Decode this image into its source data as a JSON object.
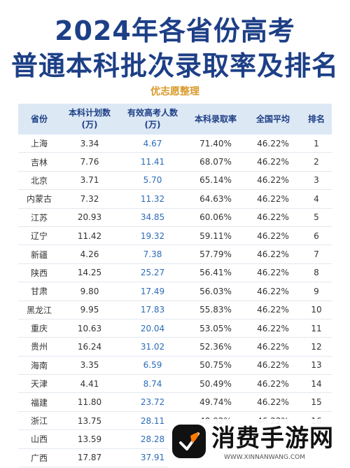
{
  "title_line1": "2024年各省份高考",
  "title_line2": "普通本科批次录取率及排名",
  "subtitle": "优志愿整理",
  "table": {
    "headers": {
      "province": "省份",
      "plan": [
        "本科计划数",
        "(万)"
      ],
      "exam": [
        "有效高考人数",
        "(万)"
      ],
      "rate": "本科录取率",
      "avg": "全国平均",
      "rank": "排名"
    },
    "rows": [
      [
        "上海",
        "3.34",
        "4.67",
        "71.40%",
        "46.22%",
        "1"
      ],
      [
        "吉林",
        "7.76",
        "11.41",
        "68.07%",
        "46.22%",
        "2"
      ],
      [
        "北京",
        "3.71",
        "5.70",
        "65.14%",
        "46.22%",
        "3"
      ],
      [
        "内蒙古",
        "7.32",
        "11.32",
        "64.63%",
        "46.22%",
        "4"
      ],
      [
        "江苏",
        "20.93",
        "34.85",
        "60.06%",
        "46.22%",
        "5"
      ],
      [
        "辽宁",
        "11.42",
        "19.32",
        "59.11%",
        "46.22%",
        "6"
      ],
      [
        "新疆",
        "4.26",
        "7.38",
        "57.79%",
        "46.22%",
        "7"
      ],
      [
        "陕西",
        "14.25",
        "25.27",
        "56.41%",
        "46.22%",
        "8"
      ],
      [
        "甘肃",
        "9.80",
        "17.49",
        "56.03%",
        "46.22%",
        "9"
      ],
      [
        "黑龙江",
        "9.95",
        "17.83",
        "55.83%",
        "46.22%",
        "10"
      ],
      [
        "重庆",
        "10.63",
        "20.04",
        "53.05%",
        "46.22%",
        "11"
      ],
      [
        "贵州",
        "16.24",
        "31.02",
        "52.36%",
        "46.22%",
        "12"
      ],
      [
        "海南",
        "3.35",
        "6.59",
        "50.75%",
        "46.22%",
        "13"
      ],
      [
        "天津",
        "4.41",
        "8.74",
        "50.49%",
        "46.22%",
        "14"
      ],
      [
        "福建",
        "11.80",
        "23.72",
        "49.74%",
        "46.22%",
        "15"
      ],
      [
        "浙江",
        "13.75",
        "28.11",
        "48.92%",
        "46.22%",
        "16"
      ],
      [
        "山西",
        "13.59",
        "28.28",
        "",
        "",
        ""
      ],
      [
        "广西",
        "17.87",
        "37.91",
        "",
        "",
        ""
      ]
    ]
  },
  "watermark": {
    "name": "消费手游网",
    "url": "WWW.XINNANWANG.COM",
    "logo_icon": "leaf-check-icon"
  }
}
